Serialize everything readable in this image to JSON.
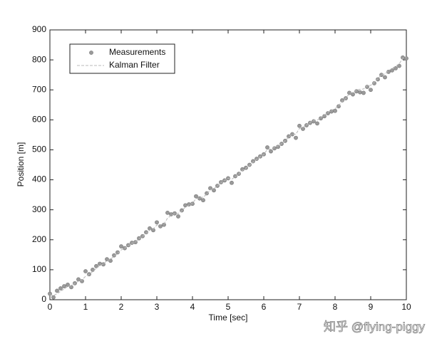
{
  "chart_data": {
    "type": "scatter-line",
    "xlabel": "Time [sec]",
    "ylabel": "Position [m]",
    "x": [
      0,
      0.1,
      0.2,
      0.3,
      0.4,
      0.5,
      0.6,
      0.7,
      0.8,
      0.9,
      1,
      1.1,
      1.2,
      1.3,
      1.4,
      1.5,
      1.6,
      1.7,
      1.8,
      1.9,
      2,
      2.1,
      2.2,
      2.3,
      2.4,
      2.5,
      2.6,
      2.7,
      2.8,
      2.9,
      3,
      3.1,
      3.2,
      3.3,
      3.4,
      3.5,
      3.6,
      3.7,
      3.8,
      3.9,
      4,
      4.1,
      4.2,
      4.3,
      4.4,
      4.5,
      4.6,
      4.7,
      4.8,
      4.9,
      5,
      5.1,
      5.2,
      5.3,
      5.4,
      5.5,
      5.6,
      5.7,
      5.8,
      5.9,
      6,
      6.1,
      6.2,
      6.3,
      6.4,
      6.5,
      6.6,
      6.7,
      6.8,
      6.9,
      7,
      7.1,
      7.2,
      7.3,
      7.4,
      7.5,
      7.6,
      7.7,
      7.8,
      7.9,
      8,
      8.1,
      8.2,
      8.3,
      8.4,
      8.5,
      8.6,
      8.7,
      8.8,
      8.9,
      9,
      9.1,
      9.2,
      9.3,
      9.4,
      9.5,
      9.6,
      9.7,
      9.8,
      9.9,
      10
    ],
    "series": [
      {
        "name": "Measurements",
        "color": "#9a9a9a",
        "style": "marker",
        "values": [
          20,
          8,
          30,
          38,
          45,
          50,
          42,
          55,
          68,
          62,
          95,
          85,
          100,
          112,
          120,
          118,
          135,
          130,
          148,
          158,
          178,
          172,
          182,
          190,
          192,
          205,
          212,
          225,
          238,
          232,
          258,
          245,
          250,
          290,
          285,
          288,
          278,
          298,
          315,
          318,
          320,
          345,
          338,
          332,
          355,
          372,
          365,
          380,
          392,
          398,
          405,
          390,
          412,
          420,
          435,
          440,
          450,
          462,
          470,
          478,
          485,
          508,
          495,
          505,
          510,
          520,
          530,
          545,
          552,
          540,
          580,
          570,
          582,
          590,
          595,
          588,
          605,
          612,
          622,
          628,
          630,
          645,
          665,
          672,
          690,
          685,
          695,
          692,
          690,
          710,
          700,
          722,
          735,
          750,
          742,
          760,
          765,
          772,
          780,
          808,
          805
        ]
      },
      {
        "name": "Kalman Filter",
        "color": "#b8b8b8",
        "style": "line",
        "values": [
          15,
          14,
          20,
          28,
          36,
          44,
          48,
          54,
          62,
          66,
          78,
          84,
          94,
          104,
          114,
          120,
          130,
          135,
          145,
          154,
          166,
          172,
          180,
          188,
          194,
          203,
          211,
          221,
          232,
          236,
          249,
          250,
          253,
          272,
          281,
          288,
          288,
          296,
          309,
          316,
          322,
          337,
          341,
          342,
          352,
          366,
          370,
          380,
          390,
          398,
          405,
          402,
          410,
          419,
          431,
          439,
          448,
          459,
          468,
          477,
          485,
          501,
          503,
          508,
          513,
          521,
          530,
          543,
          552,
          552,
          571,
          575,
          583,
          591,
          598,
          599,
          608,
          616,
          625,
          632,
          637,
          647,
          662,
          672,
          687,
          692,
          699,
          702,
          703,
          714,
          715,
          726,
          737,
          751,
          753,
          764,
          772,
          779,
          787,
          805,
          810
        ]
      }
    ],
    "xlim": [
      0,
      10
    ],
    "xticks": [
      0,
      1,
      2,
      3,
      4,
      5,
      6,
      7,
      8,
      9,
      10
    ],
    "ylim": [
      0,
      900
    ],
    "yticks": [
      0,
      100,
      200,
      300,
      400,
      500,
      600,
      700,
      800,
      900
    ],
    "legend": "upper left"
  },
  "watermark": "知乎 @flying-piggy"
}
